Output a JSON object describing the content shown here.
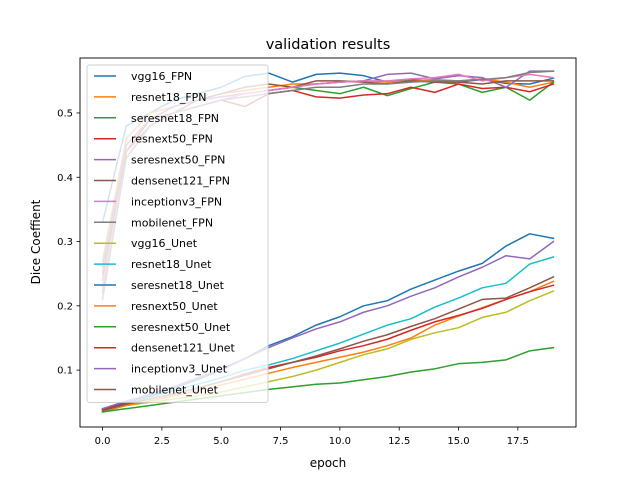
{
  "chart_data": {
    "type": "line",
    "title": "validation results",
    "xlabel": "epoch",
    "ylabel": "Dice Coeffient",
    "xlim": [
      -0.95,
      19.95
    ],
    "ylim": [
      0.0115,
      0.5855
    ],
    "xticks": [
      0.0,
      2.5,
      5.0,
      7.5,
      10.0,
      12.5,
      15.0,
      17.5
    ],
    "xtick_labels": [
      "0.0",
      "2.5",
      "5.0",
      "7.5",
      "10.0",
      "12.5",
      "15.0",
      "17.5"
    ],
    "yticks": [
      0.1,
      0.2,
      0.3,
      0.4,
      0.5
    ],
    "ytick_labels": [
      "0.1",
      "0.2",
      "0.3",
      "0.4",
      "0.5"
    ],
    "grid": false,
    "legend": "upper-left",
    "x": [
      0,
      1,
      2,
      3,
      4,
      5,
      6,
      7,
      8,
      9,
      10,
      11,
      12,
      13,
      14,
      15,
      16,
      17,
      18,
      19
    ],
    "series": [
      {
        "name": "vgg16_FPN",
        "color": "#1f77b4",
        "values": [
          0.33,
          0.48,
          0.5,
          0.52,
          0.53,
          0.54,
          0.557,
          0.562,
          0.548,
          0.56,
          0.562,
          0.558,
          0.548,
          0.552,
          0.55,
          0.548,
          0.552,
          0.546,
          0.545,
          0.554
        ]
      },
      {
        "name": "resnet18_FPN",
        "color": "#ff7f0e",
        "values": [
          0.27,
          0.46,
          0.5,
          0.51,
          0.52,
          0.53,
          0.535,
          0.54,
          0.545,
          0.545,
          0.548,
          0.55,
          0.548,
          0.55,
          0.552,
          0.55,
          0.553,
          0.548,
          0.54,
          0.548
        ]
      },
      {
        "name": "seresnet18_FPN",
        "color": "#2ca02c",
        "values": [
          0.26,
          0.45,
          0.49,
          0.51,
          0.52,
          0.525,
          0.53,
          0.535,
          0.54,
          0.535,
          0.53,
          0.54,
          0.527,
          0.538,
          0.548,
          0.545,
          0.532,
          0.54,
          0.52,
          0.548
        ]
      },
      {
        "name": "resnext50_FPN",
        "color": "#d62728",
        "values": [
          0.22,
          0.44,
          0.49,
          0.5,
          0.51,
          0.52,
          0.51,
          0.53,
          0.535,
          0.525,
          0.523,
          0.528,
          0.53,
          0.54,
          0.532,
          0.545,
          0.538,
          0.54,
          0.533,
          0.545
        ]
      },
      {
        "name": "seresnext50_FPN",
        "color": "#9467bd",
        "values": [
          0.25,
          0.45,
          0.49,
          0.51,
          0.52,
          0.525,
          0.53,
          0.535,
          0.54,
          0.545,
          0.548,
          0.55,
          0.56,
          0.562,
          0.553,
          0.558,
          0.555,
          0.54,
          0.565,
          0.565
        ]
      },
      {
        "name": "densenet121_FPN",
        "color": "#8c564b",
        "values": [
          0.24,
          0.44,
          0.48,
          0.5,
          0.52,
          0.53,
          0.54,
          0.545,
          0.54,
          0.55,
          0.55,
          0.548,
          0.545,
          0.55,
          0.548,
          0.548,
          0.545,
          0.55,
          0.55,
          0.55
        ]
      },
      {
        "name": "inceptionv3_FPN",
        "color": "#e377c2",
        "values": [
          0.23,
          0.43,
          0.48,
          0.5,
          0.51,
          0.52,
          0.53,
          0.535,
          0.54,
          0.545,
          0.548,
          0.55,
          0.55,
          0.553,
          0.555,
          0.56,
          0.55,
          0.555,
          0.56,
          0.555
        ]
      },
      {
        "name": "mobilenet_FPN",
        "color": "#7f7f7f",
        "values": [
          0.21,
          0.43,
          0.48,
          0.5,
          0.51,
          0.52,
          0.525,
          0.53,
          0.535,
          0.54,
          0.54,
          0.545,
          0.545,
          0.548,
          0.55,
          0.55,
          0.552,
          0.555,
          0.563,
          0.565
        ]
      },
      {
        "name": "vgg16_Unet",
        "color": "#bcbd22",
        "values": [
          0.035,
          0.045,
          0.05,
          0.055,
          0.06,
          0.066,
          0.074,
          0.082,
          0.09,
          0.1,
          0.112,
          0.124,
          0.133,
          0.148,
          0.158,
          0.166,
          0.182,
          0.19,
          0.208,
          0.223
        ]
      },
      {
        "name": "resnet18_Unet",
        "color": "#17becf",
        "values": [
          0.04,
          0.05,
          0.058,
          0.068,
          0.078,
          0.088,
          0.1,
          0.108,
          0.118,
          0.13,
          0.142,
          0.156,
          0.17,
          0.18,
          0.198,
          0.212,
          0.228,
          0.235,
          0.265,
          0.276
        ]
      },
      {
        "name": "seresnet18_Unet",
        "color": "#1f77b4",
        "values": [
          0.04,
          0.05,
          0.06,
          0.072,
          0.085,
          0.1,
          0.118,
          0.138,
          0.152,
          0.17,
          0.183,
          0.2,
          0.208,
          0.226,
          0.24,
          0.254,
          0.266,
          0.293,
          0.312,
          0.305
        ]
      },
      {
        "name": "resnext50_Unet",
        "color": "#ff7f0e",
        "values": [
          0.035,
          0.045,
          0.052,
          0.06,
          0.068,
          0.077,
          0.086,
          0.095,
          0.104,
          0.112,
          0.12,
          0.128,
          0.138,
          0.15,
          0.17,
          0.184,
          0.197,
          0.21,
          0.222,
          0.238
        ]
      },
      {
        "name": "seresnext50_Unet",
        "color": "#2ca02c",
        "values": [
          0.035,
          0.04,
          0.045,
          0.05,
          0.055,
          0.06,
          0.065,
          0.07,
          0.074,
          0.078,
          0.08,
          0.085,
          0.09,
          0.097,
          0.102,
          0.11,
          0.112,
          0.116,
          0.13,
          0.135
        ]
      },
      {
        "name": "densenet121_Unet",
        "color": "#d62728",
        "values": [
          0.038,
          0.048,
          0.055,
          0.063,
          0.072,
          0.082,
          0.094,
          0.104,
          0.112,
          0.12,
          0.13,
          0.138,
          0.148,
          0.162,
          0.175,
          0.185,
          0.196,
          0.21,
          0.222,
          0.232
        ]
      },
      {
        "name": "inceptionv3_Unet",
        "color": "#9467bd",
        "values": [
          0.04,
          0.052,
          0.062,
          0.074,
          0.088,
          0.102,
          0.118,
          0.135,
          0.15,
          0.164,
          0.175,
          0.19,
          0.2,
          0.215,
          0.228,
          0.245,
          0.26,
          0.278,
          0.273,
          0.3
        ]
      },
      {
        "name": "mobilenet_Unet",
        "color": "#8c564b",
        "values": [
          0.037,
          0.047,
          0.055,
          0.063,
          0.072,
          0.082,
          0.092,
          0.102,
          0.112,
          0.122,
          0.133,
          0.145,
          0.155,
          0.168,
          0.18,
          0.195,
          0.21,
          0.212,
          0.228,
          0.245
        ]
      }
    ]
  }
}
